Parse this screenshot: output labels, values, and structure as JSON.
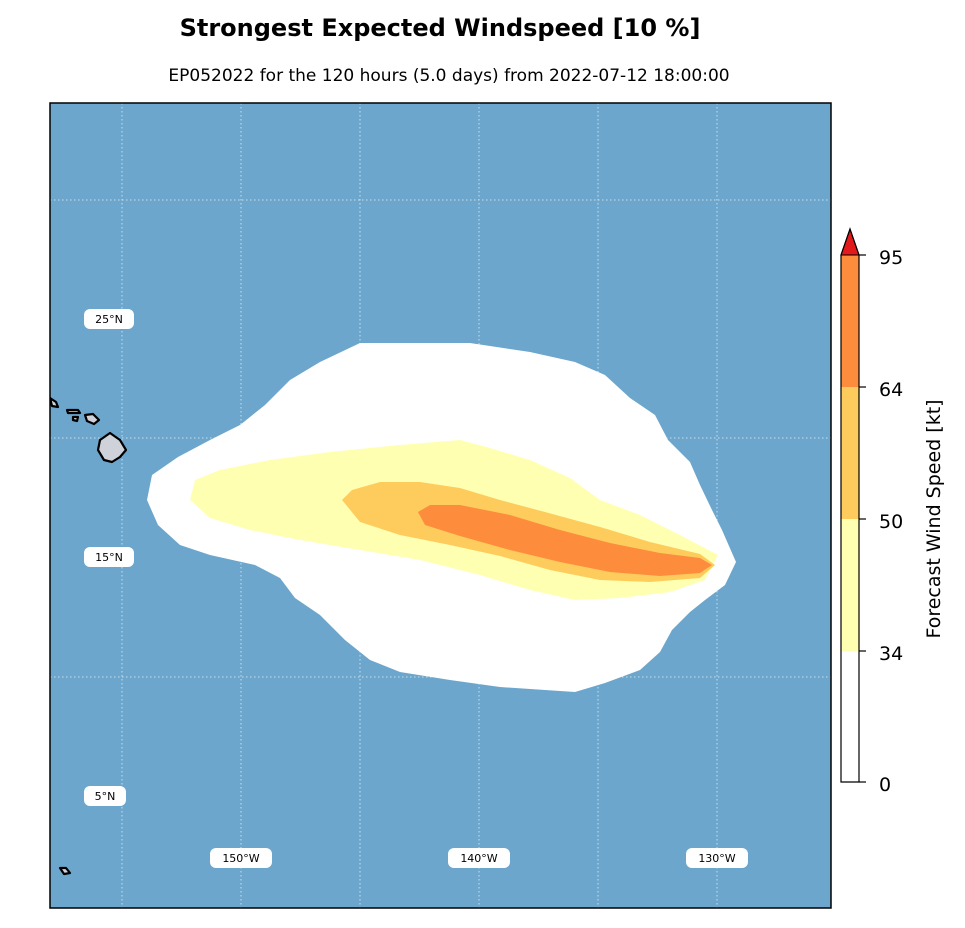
{
  "title": "Strongest Expected Windspeed [10 %]",
  "subtitle": "EP052022 for the 120 hours (5.0 days) from 2022-07-12 18:00:00",
  "map": {
    "ocean_color": "#6ca6cc",
    "land_color": "#cfd3d9",
    "lat_labels": [
      "25°N",
      "15°N",
      "5°N"
    ],
    "lon_labels": [
      "150°W",
      "140°W",
      "130°W"
    ],
    "gridlines": "dotted"
  },
  "colorbar": {
    "label": "Forecast Wind Speed [kt]",
    "ticks": [
      "0",
      "34",
      "50",
      "64",
      "95"
    ],
    "levels": [
      {
        "from": 0,
        "to": 34,
        "color": "#ffffff"
      },
      {
        "from": 34,
        "to": 50,
        "color": "#ffffb2"
      },
      {
        "from": 50,
        "to": 64,
        "color": "#fecc5c"
      },
      {
        "from": 64,
        "to": 95,
        "color": "#fd8d3c"
      },
      {
        "from": 95,
        "to": null,
        "color": "#e31a1c"
      }
    ]
  },
  "chart_data": {
    "type": "heatmap",
    "title": "Strongest Expected Windspeed [10 %]",
    "subtitle": "EP052022 for the 120 hours (5.0 days) from 2022-07-12 18:00:00",
    "colorbar_label": "Forecast Wind Speed [kt]",
    "levels_kt": [
      0,
      34,
      50,
      64,
      95
    ],
    "x_ticks": [
      "150°W",
      "140°W",
      "130°W"
    ],
    "y_ticks": [
      "25°N",
      "15°N",
      "5°N"
    ],
    "extent_lon_deg": [
      -157.5,
      -124.5
    ],
    "extent_lat_deg": [
      -0.5,
      33.5
    ]
  }
}
